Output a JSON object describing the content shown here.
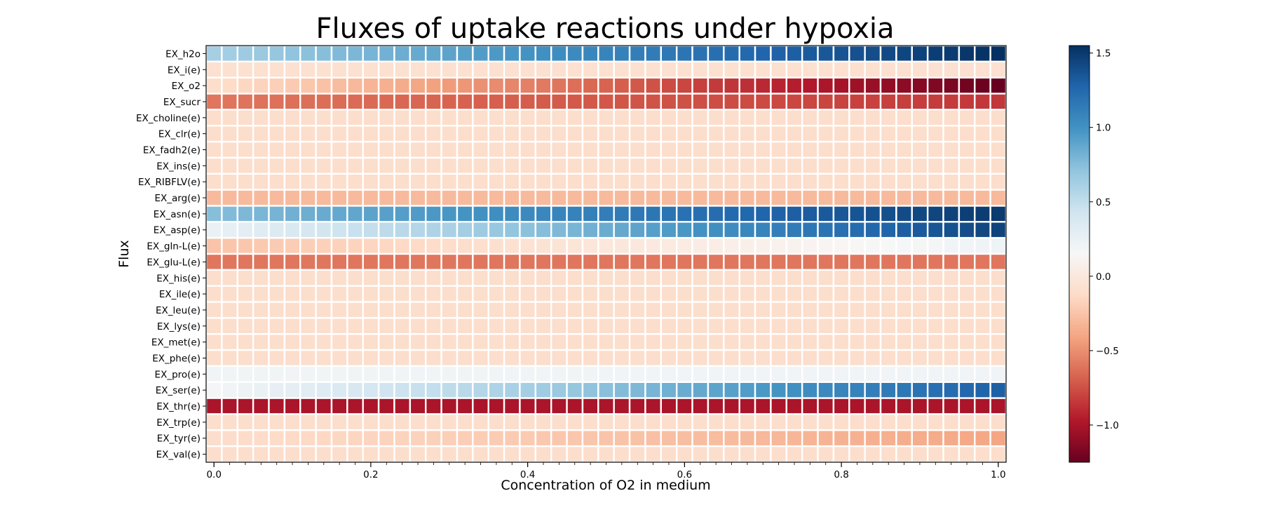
{
  "chart_data": {
    "type": "heatmap",
    "title": "Fluxes of uptake reactions under hypoxia",
    "xlabel": "Concentration of O2 in medium",
    "ylabel": "Flux",
    "x": {
      "start": 0.0,
      "end": 1.0,
      "count": 51
    },
    "x_ticks": [
      "0.0",
      "0.2",
      "0.4",
      "0.6",
      "0.8",
      "1.0"
    ],
    "rows": [
      {
        "name": "EX_h2o",
        "start": 0.62,
        "end": 1.55
      },
      {
        "name": "EX_i(e)",
        "start": -0.08,
        "end": -0.08
      },
      {
        "name": "EX_o2",
        "start": -0.1,
        "end": -1.25
      },
      {
        "name": "EX_sucr",
        "start": -0.6,
        "end": -0.85
      },
      {
        "name": "EX_choline(e)",
        "start": -0.1,
        "end": -0.1
      },
      {
        "name": "EX_clr(e)",
        "start": -0.1,
        "end": -0.1
      },
      {
        "name": "EX_fadh2(e)",
        "start": -0.1,
        "end": -0.1
      },
      {
        "name": "EX_ins(e)",
        "start": -0.1,
        "end": -0.1
      },
      {
        "name": "EX_RIBFLV(e)",
        "start": -0.1,
        "end": -0.1
      },
      {
        "name": "EX_arg(e)",
        "start": -0.3,
        "end": -0.3
      },
      {
        "name": "EX_asn(e)",
        "start": 0.75,
        "end": 1.5
      },
      {
        "name": "EX_asp(e)",
        "start": 0.25,
        "end": 1.45
      },
      {
        "name": "EX_gln-L(e)",
        "start": -0.25,
        "end": 0.22
      },
      {
        "name": "EX_glu-L(e)",
        "start": -0.6,
        "end": -0.6
      },
      {
        "name": "EX_his(e)",
        "start": -0.1,
        "end": -0.1
      },
      {
        "name": "EX_ile(e)",
        "start": -0.1,
        "end": -0.1
      },
      {
        "name": "EX_leu(e)",
        "start": -0.1,
        "end": -0.1
      },
      {
        "name": "EX_lys(e)",
        "start": -0.1,
        "end": -0.1
      },
      {
        "name": "EX_met(e)",
        "start": -0.1,
        "end": -0.1
      },
      {
        "name": "EX_phe(e)",
        "start": -0.1,
        "end": -0.1
      },
      {
        "name": "EX_pro(e)",
        "start": 0.2,
        "end": 0.2
      },
      {
        "name": "EX_ser(e)",
        "start": 0.18,
        "end": 1.3
      },
      {
        "name": "EX_thr(e)",
        "start": -1.0,
        "end": -1.0
      },
      {
        "name": "EX_trp(e)",
        "start": -0.1,
        "end": -0.1
      },
      {
        "name": "EX_tyr(e)",
        "start": -0.1,
        "end": -0.4
      },
      {
        "name": "EX_val(e)",
        "start": -0.1,
        "end": -0.1
      }
    ],
    "colorbar": {
      "vmin": -1.25,
      "vmax": 1.55,
      "ticks": [
        1.5,
        1.0,
        0.5,
        0.0,
        -0.5,
        -1.0
      ],
      "tick_labels": [
        "1.5",
        "1.0",
        "0.5",
        "0.0",
        "−0.5",
        "−1.0"
      ],
      "colormap": "RdBu",
      "colors": [
        "#67001f",
        "#b2182b",
        "#d6604d",
        "#f4a582",
        "#fddbc7",
        "#f7f7f7",
        "#d1e5f0",
        "#92c5de",
        "#4393c3",
        "#2166ac",
        "#053061"
      ]
    },
    "grid": false,
    "legend": "colorbar-right"
  }
}
